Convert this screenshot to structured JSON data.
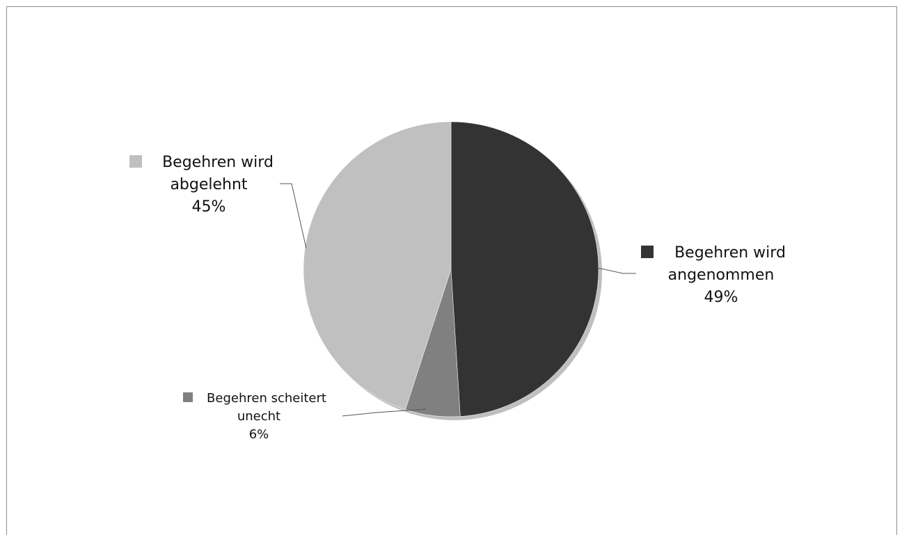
{
  "chart_data": {
    "type": "pie",
    "slices": [
      {
        "label_line1": "Begehren wird",
        "label_line2": "angenommen",
        "percent_label": "49%",
        "value": 49,
        "color": "#333333"
      },
      {
        "label_line1": "Begehren scheitert",
        "label_line2": "unecht",
        "percent_label": "6%",
        "value": 6,
        "color": "#808080"
      },
      {
        "label_line1": "Begehren wird",
        "label_line2": "abgelehnt",
        "percent_label": "45%",
        "value": 45,
        "color": "#c0c0c0"
      }
    ],
    "start_angle_deg": 0,
    "direction": "clockwise",
    "shadow_color": "#bfbfbf",
    "legend": "data labels beside slices with color markers"
  }
}
